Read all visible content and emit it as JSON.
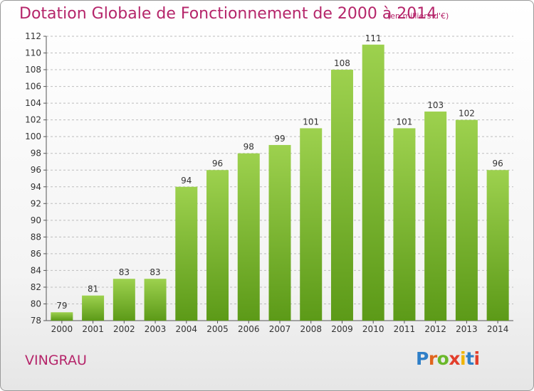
{
  "title": "Dotation Globale de Fonctionnement de 2000 à 2014",
  "subtitle": "(en milliers d'€)",
  "commune": "VINGRAU",
  "logo": {
    "letters": [
      "P",
      "r",
      "o",
      "x",
      "i",
      "t",
      "i"
    ],
    "colors": [
      "#2f7fc8",
      "#e0651d",
      "#6ab82a",
      "#e23e2b",
      "#f0b400",
      "#2f7fc8",
      "#e23e2b"
    ]
  },
  "colors": {
    "bar_top": "#9dd14e",
    "bar_bottom": "#5c9a18",
    "title": "#b5256a"
  },
  "chart_data": {
    "type": "bar",
    "categories": [
      "2000",
      "2001",
      "2002",
      "2003",
      "2004",
      "2005",
      "2006",
      "2007",
      "2008",
      "2009",
      "2010",
      "2011",
      "2012",
      "2013",
      "2014"
    ],
    "values": [
      79,
      81,
      83,
      83,
      94,
      96,
      98,
      99,
      101,
      108,
      111,
      101,
      103,
      102,
      96
    ],
    "ylim": [
      78,
      112
    ],
    "yticks": [
      78,
      80,
      82,
      84,
      86,
      88,
      90,
      92,
      94,
      96,
      98,
      100,
      102,
      104,
      106,
      108,
      110,
      112
    ],
    "grid": "horizontal dashed",
    "xlabel": "",
    "ylabel": ""
  }
}
